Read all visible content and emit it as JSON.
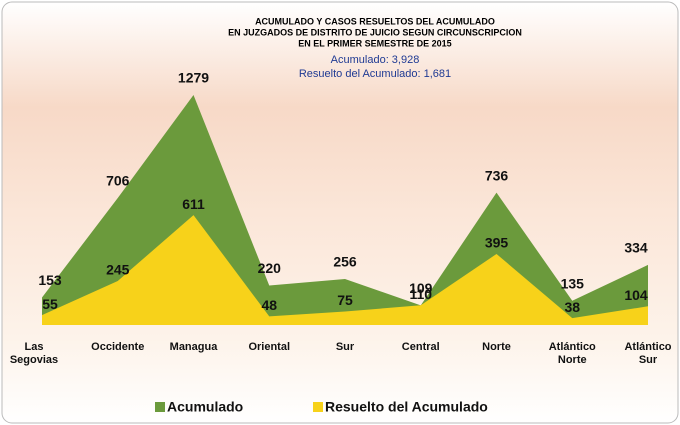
{
  "chart_data": {
    "type": "area",
    "title": [
      "ACUMULADO Y CASOS RESUELTOS DEL ACUMULADO",
      "EN JUZGADOS DE DISTRITO DE JUICIO SEGUN CIRCUNSCRIPCION",
      "EN EL PRIMER SEMESTRE DE 2015"
    ],
    "subtitle": [
      "Acumulado: 3,928",
      "Resuelto del Acumulado: 1,681"
    ],
    "categories": [
      "Las Segovias",
      "Occidente",
      "Managua",
      "Oriental",
      "Sur",
      "Central",
      "Norte",
      "Atlántico Norte",
      "Atlántico Sur"
    ],
    "series": [
      {
        "name": "Acumulado",
        "color": "#6b9a3c",
        "values": [
          153,
          706,
          1279,
          220,
          256,
          109,
          736,
          135,
          334
        ]
      },
      {
        "name": "Resuelto del Acumulado",
        "color": "#f7d21a",
        "values": [
          55,
          245,
          611,
          48,
          75,
          110,
          395,
          38,
          104
        ]
      }
    ],
    "legend": "bottom"
  }
}
